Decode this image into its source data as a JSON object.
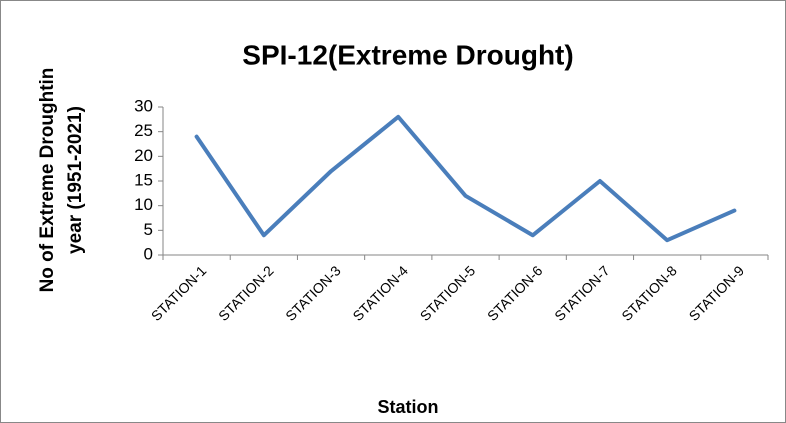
{
  "chart_data": {
    "type": "line",
    "title": "SPI-12(Extreme Drought)",
    "x_label": "Station",
    "y_label": [
      "No of Extreme Droughtin",
      "year (1951-2021)"
    ],
    "categories": [
      "STATION-1",
      "STATION-2",
      "STATION-3",
      "STATION-4",
      "STATION-5",
      "STATION-6",
      "STATION-7",
      "STATION-8",
      "STATION-9"
    ],
    "values": [
      24,
      4,
      17,
      28,
      12,
      4,
      15,
      3,
      9
    ],
    "color": "#4a7ebb",
    "ylim": [
      0,
      30
    ],
    "yticks": [
      0,
      5,
      10,
      15,
      20,
      25,
      30
    ],
    "grid": false
  }
}
